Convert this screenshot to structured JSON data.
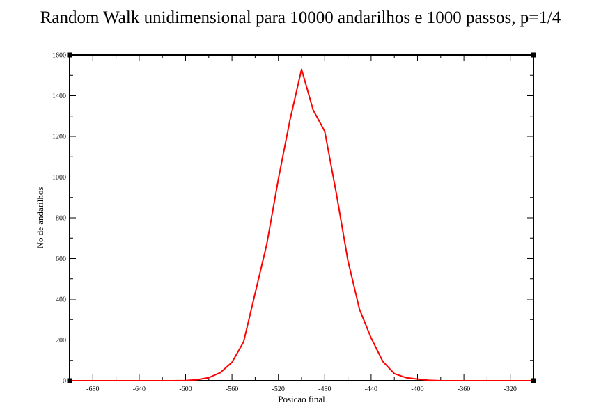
{
  "chart_data": {
    "type": "line",
    "title": "Random Walk unidimensional para 10000 andarilhos e 1000 passos, p=1/4",
    "xlabel": "Posicao final",
    "ylabel": "No de andarilhos",
    "xlim": [
      -700,
      -300
    ],
    "ylim": [
      0,
      1600
    ],
    "x_ticks": [
      -680,
      -640,
      -600,
      -560,
      -520,
      -480,
      -440,
      -400,
      -360,
      -320
    ],
    "y_ticks": [
      0,
      200,
      400,
      600,
      800,
      1000,
      1200,
      1400,
      1600
    ],
    "grid": false,
    "series": [
      {
        "color": "#ff0000",
        "x": [
          -700,
          -690,
          -680,
          -670,
          -660,
          -650,
          -640,
          -630,
          -620,
          -610,
          -600,
          -590,
          -580,
          -570,
          -560,
          -550,
          -540,
          -530,
          -520,
          -510,
          -500,
          -490,
          -480,
          -470,
          -460,
          -450,
          -440,
          -430,
          -420,
          -410,
          -400,
          -390,
          -380,
          -370,
          -360,
          -350,
          -340,
          -330,
          -320,
          -310,
          -300
        ],
        "y": [
          0,
          0,
          0,
          0,
          0,
          0,
          0,
          0,
          0,
          0,
          1,
          5,
          15,
          40,
          90,
          190,
          430,
          670,
          990,
          1280,
          1530,
          1330,
          1225,
          920,
          590,
          350,
          210,
          95,
          35,
          15,
          8,
          2,
          0,
          0,
          0,
          0,
          0,
          0,
          0,
          0,
          0
        ]
      }
    ]
  }
}
